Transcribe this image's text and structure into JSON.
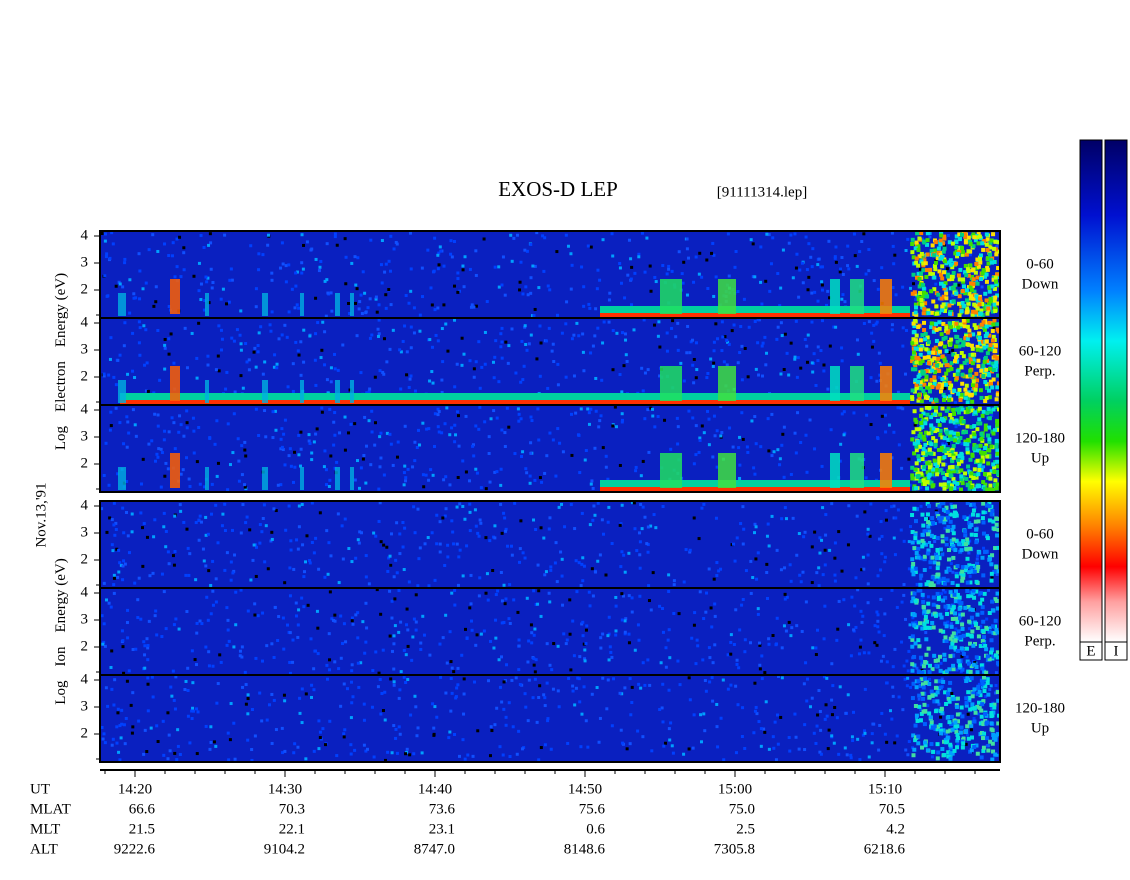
{
  "header": {
    "title": "EXOS-D LEP",
    "file": "[91111314.lep]"
  },
  "date": "Nov.13,'91",
  "electron": {
    "axis_label": [
      "Log",
      "Electron",
      "Energy (eV)"
    ],
    "panels": [
      {
        "label": [
          "0-60",
          "Down"
        ]
      },
      {
        "label": [
          "60-120",
          "Perp."
        ]
      },
      {
        "label": [
          "120-180",
          "Up"
        ]
      }
    ]
  },
  "ion": {
    "axis_label": [
      "Log",
      "Ion",
      "Energy (eV)"
    ],
    "panels": [
      {
        "label": [
          "0-60",
          "Down"
        ]
      },
      {
        "label": [
          "60-120",
          "Perp."
        ]
      },
      {
        "label": [
          "120-180",
          "Up"
        ]
      }
    ]
  },
  "energy_ticks": [
    "2",
    "3",
    "4"
  ],
  "colorbars": [
    "E",
    "I"
  ],
  "orbit_table": {
    "row_labels": [
      "UT",
      "MLAT",
      "MLT",
      "ALT"
    ],
    "columns": [
      [
        "14:20",
        "66.6",
        "21.5",
        "9222.6"
      ],
      [
        "14:30",
        "70.3",
        "22.1",
        "9104.2"
      ],
      [
        "14:40",
        "73.6",
        "23.1",
        "8747.0"
      ],
      [
        "14:50",
        "75.6",
        "0.6",
        "8148.6"
      ],
      [
        "15:00",
        "75.0",
        "2.5",
        "7305.8"
      ],
      [
        "15:10",
        "70.5",
        "4.2",
        "6218.6"
      ]
    ]
  }
}
